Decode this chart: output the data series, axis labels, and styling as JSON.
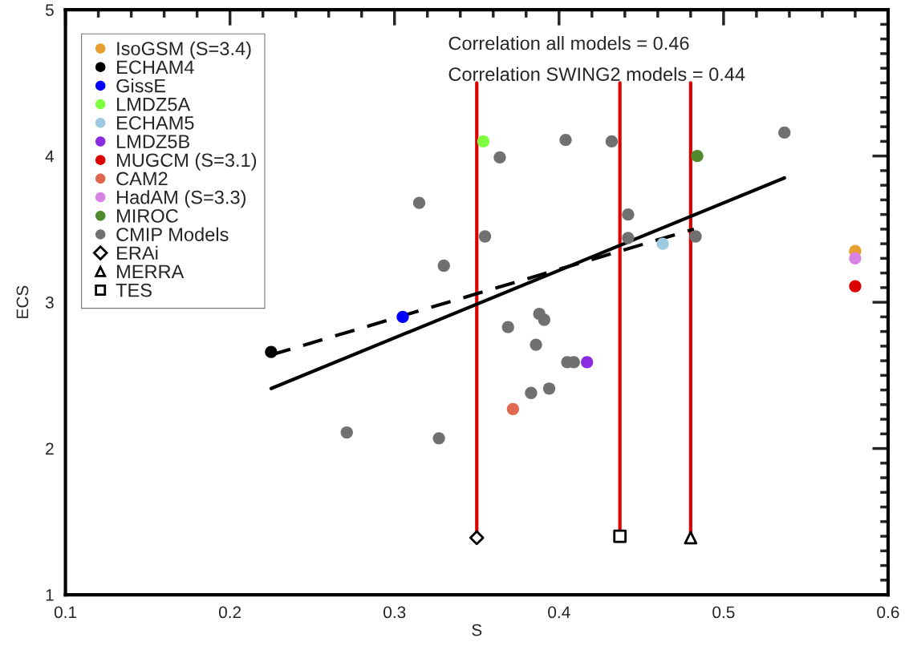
{
  "chart_data": {
    "type": "scatter",
    "xlabel": "S",
    "ylabel": "ECS",
    "xlim": [
      0.1,
      0.6
    ],
    "ylim": [
      1,
      5
    ],
    "xticks": [
      0.1,
      0.2,
      0.3,
      0.4,
      0.5,
      0.6
    ],
    "yticks": [
      1,
      2,
      3,
      4,
      5
    ],
    "grid": false,
    "legend": "top left",
    "marker": "circle",
    "annotations": [
      "Correlation all models = 0.46",
      "Correlation SWING2 models = 0.44"
    ],
    "series": [
      {
        "name": "IsoGSM (S=3.4)",
        "color": "#e8a033",
        "x": [
          0.58
        ],
        "values": [
          3.35
        ]
      },
      {
        "name": "ECHAM4",
        "color": "#000000",
        "x": [
          0.225
        ],
        "values": [
          2.66
        ]
      },
      {
        "name": "GissE",
        "color": "#0000ff",
        "x": [
          0.305
        ],
        "values": [
          2.9
        ]
      },
      {
        "name": "LMDZ5A",
        "color": "#80ff40",
        "x": [
          0.354
        ],
        "values": [
          4.1
        ]
      },
      {
        "name": "ECHAM5",
        "color": "#9ecae1",
        "x": [
          0.463
        ],
        "values": [
          3.4
        ]
      },
      {
        "name": "LMDZ5B",
        "color": "#8a2be2",
        "x": [
          0.417
        ],
        "values": [
          2.59
        ]
      },
      {
        "name": "MUGCM (S=3.1)",
        "color": "#dd0000",
        "x": [
          0.58
        ],
        "values": [
          3.11
        ]
      },
      {
        "name": "CAM2",
        "color": "#e0684f",
        "x": [
          0.372
        ],
        "values": [
          2.27
        ]
      },
      {
        "name": "HadAM (S=3.3)",
        "color": "#d883e3",
        "x": [
          0.58
        ],
        "values": [
          3.3
        ]
      },
      {
        "name": "MIROC",
        "color": "#4f8a2f",
        "x": [
          0.484
        ],
        "values": [
          4.0
        ]
      },
      {
        "name": "CMIP Models",
        "color": "#707070",
        "x": [
          0.364,
          0.404,
          0.432,
          0.537,
          0.442,
          0.355,
          0.442,
          0.483,
          0.33,
          0.388,
          0.391,
          0.369,
          0.386,
          0.405,
          0.409,
          0.315,
          0.271,
          0.327,
          0.383,
          0.394
        ],
        "values": [
          3.99,
          4.11,
          4.1,
          4.16,
          3.6,
          3.45,
          3.44,
          3.45,
          3.25,
          2.92,
          2.88,
          2.83,
          2.71,
          2.59,
          2.59,
          3.68,
          2.11,
          2.07,
          2.38,
          2.41
        ]
      },
      {
        "type": "line",
        "color": "#dd0000",
        "marker": "none",
        "x": [
          0.35,
          0.35
        ],
        "values": [
          1.39,
          4.5
        ]
      },
      {
        "type": "line",
        "color": "#dd0000",
        "marker": "none",
        "x": [
          0.437,
          0.437
        ],
        "values": [
          1.4,
          4.5
        ]
      },
      {
        "type": "line",
        "color": "#dd0000",
        "marker": "none",
        "x": [
          0.48,
          0.48
        ],
        "values": [
          1.39,
          4.5
        ]
      },
      {
        "type": "line",
        "color": "#000000",
        "marker": "none",
        "line_style": "solid",
        "x": [
          0.225,
          0.537
        ],
        "values": [
          2.41,
          3.85
        ]
      },
      {
        "type": "line",
        "color": "#000000",
        "marker": "none",
        "line_style": "dashed",
        "x": [
          0.225,
          0.482
        ],
        "values": [
          2.64,
          3.5
        ]
      },
      {
        "name": "ERAi",
        "color": "#000000",
        "marker": "diamond",
        "x": [
          0.35
        ],
        "values": [
          1.39
        ]
      },
      {
        "name": "MERRA",
        "color": "#000000",
        "marker": "triangle",
        "x": [
          0.48
        ],
        "values": [
          1.39
        ]
      },
      {
        "name": "TES",
        "color": "#000000",
        "marker": "square",
        "x": [
          0.437
        ],
        "values": [
          1.4
        ]
      }
    ]
  }
}
